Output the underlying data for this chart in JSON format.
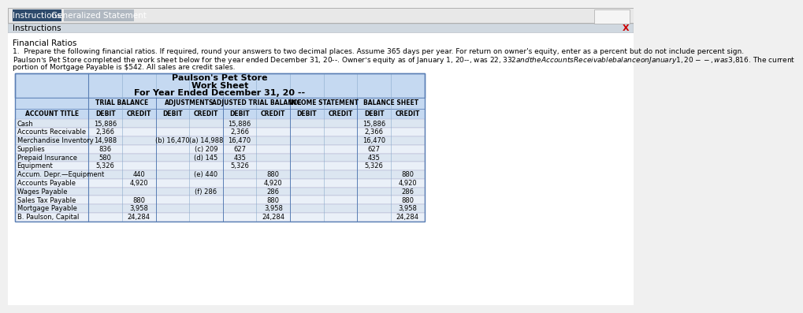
{
  "tab1_label": "Instructions",
  "tab2_label": "Generalized Statement",
  "tab1_bg": "#2d4a6b",
  "tab2_bg": "#b0b8c1",
  "tab_text_color": "#ffffff",
  "instructions_header": "Instructions",
  "section_label": "Financial Ratios",
  "instruction1": "1.  Prepare the following financial ratios. If required, round your answers to two decimal places. Assume 365 days per year. For return on owner's equity, enter as a percent but do not include percent sign.",
  "instruction2": "Paulson’s Pet Store completed the work sheet below for the year ended December 31, 20--. Owner’s equity as of January 1, 20--, was $22,332 and the Accounts Receivable balance on January 1, 20--, was $3,816. The current portion of Mortgage Payable is $542. All sales are credit sales.",
  "table_title1": "Paulson's Pet Store",
  "table_title2": "Work Sheet",
  "table_title3": "For Year Ended December 31, 20 --",
  "header_bg": "#c5d9f1",
  "row_bg_odd": "#dce6f1",
  "row_bg_even": "#eaf0f8",
  "col_headers1": [
    "",
    "TRIAL BALANCE",
    "ADJUSTMENTS",
    "ADJUSTED TRIAL BALANCE",
    "INCOME STATEMENT",
    "BALANCE SHEET"
  ],
  "col_headers2": [
    "ACCOUNT TITLE",
    "DEBIT",
    "CREDIT",
    "DEBIT",
    "CREDIT",
    "DEBIT",
    "CREDIT",
    "DEBIT",
    "CREDIT",
    "DEBIT",
    "CREDIT"
  ],
  "rows": [
    [
      "Cash",
      "15,886",
      "",
      "",
      "",
      "15,886",
      "",
      "",
      "",
      "15,886",
      ""
    ],
    [
      "Accounts Receivable",
      "2,366",
      "",
      "",
      "",
      "2,366",
      "",
      "",
      "",
      "2,366",
      ""
    ],
    [
      "Merchandise Inventory",
      "14,988",
      "",
      "(b) 16,470",
      "(a) 14,988",
      "16,470",
      "",
      "",
      "",
      "16,470",
      ""
    ],
    [
      "Supplies",
      "836",
      "",
      "",
      "(c) 209",
      "627",
      "",
      "",
      "",
      "627",
      ""
    ],
    [
      "Prepaid Insurance",
      "580",
      "",
      "",
      "(d) 145",
      "435",
      "",
      "",
      "",
      "435",
      ""
    ],
    [
      "Equipment",
      "5,326",
      "",
      "",
      "",
      "5,326",
      "",
      "",
      "",
      "5,326",
      ""
    ],
    [
      "Accum. Depr.—Equipment",
      "",
      "440",
      "",
      "(e) 440",
      "",
      "880",
      "",
      "",
      "",
      "880"
    ],
    [
      "Accounts Payable",
      "",
      "4,920",
      "",
      "",
      "",
      "4,920",
      "",
      "",
      "",
      "4,920"
    ],
    [
      "Wages Payable",
      "",
      "",
      "",
      "(f) 286",
      "",
      "286",
      "",
      "",
      "",
      "286"
    ],
    [
      "Sales Tax Payable",
      "",
      "880",
      "",
      "",
      "",
      "880",
      "",
      "",
      "",
      "880"
    ],
    [
      "Mortgage Payable",
      "",
      "3,958",
      "",
      "",
      "",
      "3,958",
      "",
      "",
      "",
      "3,958"
    ],
    [
      "B. Paulson, Capital",
      "",
      "24,284",
      "",
      "",
      "",
      "24,284",
      "",
      "",
      "",
      "24,284"
    ]
  ],
  "outer_bg": "#f0f0f0",
  "panel_bg": "#ffffff",
  "red_x_color": "#cc0000",
  "instructions_bar_bg": "#d0d8e0",
  "main_bg": "#ffffff"
}
